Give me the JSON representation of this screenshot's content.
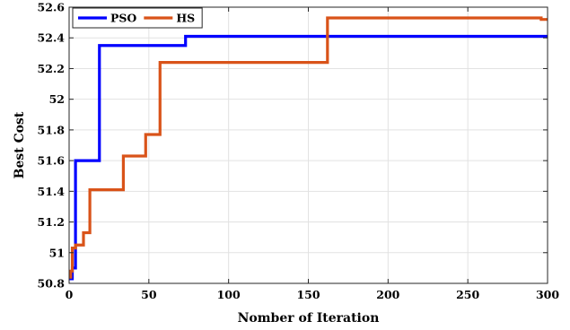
{
  "chart_data": {
    "type": "line",
    "title": "",
    "xlabel": "Nomber of Iteration",
    "ylabel": "Best Cost",
    "xlim": [
      0,
      300
    ],
    "ylim": [
      50.8,
      52.6
    ],
    "xticks": [
      0,
      50,
      100,
      150,
      200,
      250,
      300
    ],
    "yticks": [
      50.8,
      51,
      51.2,
      51.4,
      51.6,
      51.8,
      52,
      52.2,
      52.4,
      52.6
    ],
    "xtick_labels": [
      "0",
      "50",
      "100",
      "150",
      "200",
      "250",
      "300"
    ],
    "ytick_labels": [
      "50.8",
      "51",
      "51.2",
      "51.4",
      "51.6",
      "51.8",
      "52",
      "52.2",
      "52.4",
      "52.6"
    ],
    "grid": true,
    "legend_position": "top-left",
    "series": [
      {
        "name": "PSO",
        "color": "#0000ff",
        "step": true,
        "points": [
          [
            0,
            50.83
          ],
          [
            2,
            50.9
          ],
          [
            4,
            51.6
          ],
          [
            19,
            52.35
          ],
          [
            73,
            52.41
          ],
          [
            300,
            52.41
          ]
        ]
      },
      {
        "name": "HS",
        "color": "#d95319",
        "step": true,
        "points": [
          [
            0,
            50.84
          ],
          [
            1,
            50.88
          ],
          [
            2,
            51.03
          ],
          [
            4,
            51.05
          ],
          [
            9,
            51.13
          ],
          [
            13,
            51.41
          ],
          [
            34,
            51.63
          ],
          [
            48,
            51.77
          ],
          [
            57,
            52.24
          ],
          [
            162,
            52.53
          ],
          [
            296,
            52.52
          ],
          [
            300,
            52.52
          ]
        ]
      }
    ]
  }
}
